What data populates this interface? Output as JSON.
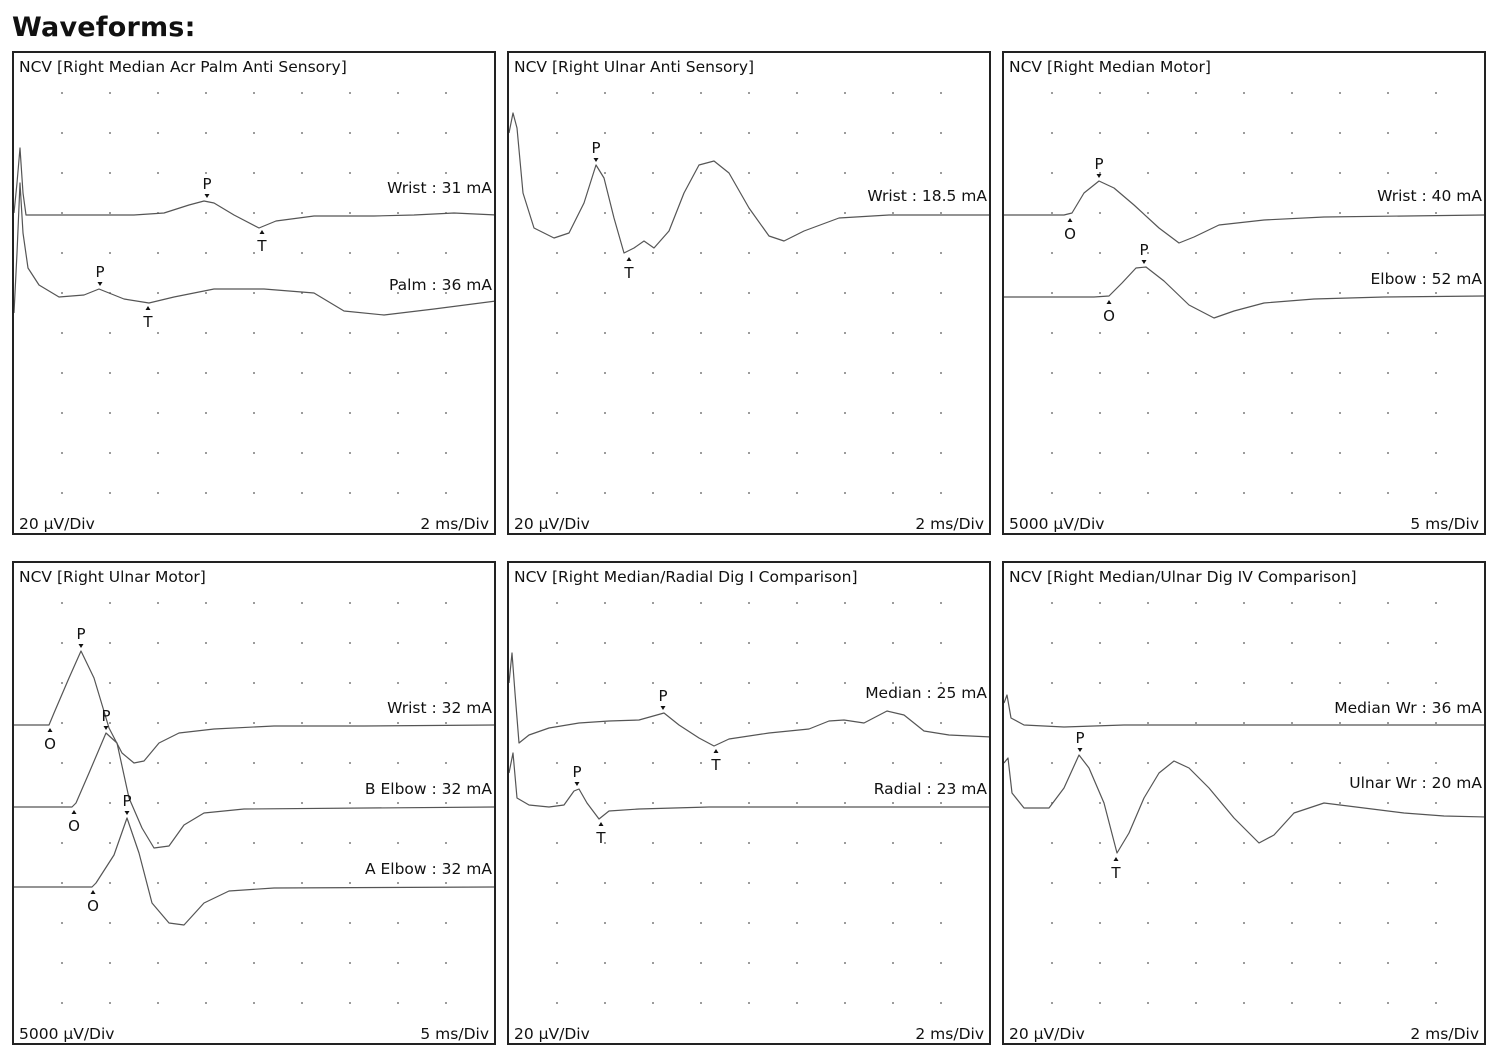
{
  "heading": "Waveforms:",
  "chart_data": [
    {
      "type": "line",
      "title": "NCV [Right Median Acr Palm Anti Sensory]",
      "y_scale": "20 µV/Div",
      "x_scale": "2 ms/Div",
      "series": [
        {
          "name": "Wrist : 31 mA",
          "markers": [
            {
              "label": "P",
              "x": 3.8
            },
            {
              "label": "T",
              "x": 4.9
            }
          ]
        },
        {
          "name": "Palm : 36 mA",
          "markers": [
            {
              "label": "P",
              "x": 1.7
            },
            {
              "label": "T",
              "x": 2.6
            }
          ]
        }
      ]
    },
    {
      "type": "line",
      "title": "NCV [Right Ulnar Anti Sensory]",
      "y_scale": "20 µV/Div",
      "x_scale": "2 ms/Div",
      "series": [
        {
          "name": "Wrist : 18.5 mA",
          "markers": [
            {
              "label": "P",
              "x": 1.8
            },
            {
              "label": "T",
              "x": 2.5
            }
          ]
        }
      ]
    },
    {
      "type": "line",
      "title": "NCV [Right Median Motor]",
      "y_scale": "5000 µV/Div",
      "x_scale": "5 ms/Div",
      "series": [
        {
          "name": "Wrist : 40 mA",
          "markers": [
            {
              "label": "O",
              "x": 3.2
            },
            {
              "label": "P",
              "x": 4.8
            }
          ]
        },
        {
          "name": "Elbow : 52 mA",
          "markers": [
            {
              "label": "O",
              "x": 5.1
            },
            {
              "label": "P",
              "x": 6.8
            }
          ]
        }
      ]
    },
    {
      "type": "line",
      "title": "NCV [Right Ulnar Motor]",
      "y_scale": "5000 µV/Div",
      "x_scale": "5 ms/Div",
      "series": [
        {
          "name": "Wrist : 32 mA",
          "markers": [
            {
              "label": "O",
              "x": 1.8
            },
            {
              "label": "P",
              "x": 3.4
            }
          ]
        },
        {
          "name": "B Elbow : 32 mA",
          "markers": [
            {
              "label": "O",
              "x": 3.0
            },
            {
              "label": "P",
              "x": 4.6
            }
          ]
        },
        {
          "name": "A Elbow : 32 mA",
          "markers": [
            {
              "label": "O",
              "x": 4.0
            },
            {
              "label": "P",
              "x": 5.6
            }
          ]
        }
      ]
    },
    {
      "type": "line",
      "title": "NCV [Right Median/Radial Dig I Comparison]",
      "y_scale": "20 µV/Div",
      "x_scale": "2 ms/Div",
      "series": [
        {
          "name": "Median : 25 mA",
          "markers": [
            {
              "label": "P",
              "x": 3.2
            },
            {
              "label": "T",
              "x": 4.2
            }
          ]
        },
        {
          "name": "Radial : 23 mA",
          "markers": [
            {
              "label": "P",
              "x": 1.3
            },
            {
              "label": "T",
              "x": 1.8
            }
          ]
        }
      ]
    },
    {
      "type": "line",
      "title": "NCV [Right Median/Ulnar Dig IV Comparison]",
      "y_scale": "20 µV/Div",
      "x_scale": "2 ms/Div",
      "series": [
        {
          "name": "Median Wr : 36 mA",
          "markers": []
        },
        {
          "name": "Ulnar Wr : 20 mA",
          "markers": [
            {
              "label": "P",
              "x": 1.5
            },
            {
              "label": "T",
              "x": 2.2
            }
          ]
        }
      ]
    }
  ]
}
